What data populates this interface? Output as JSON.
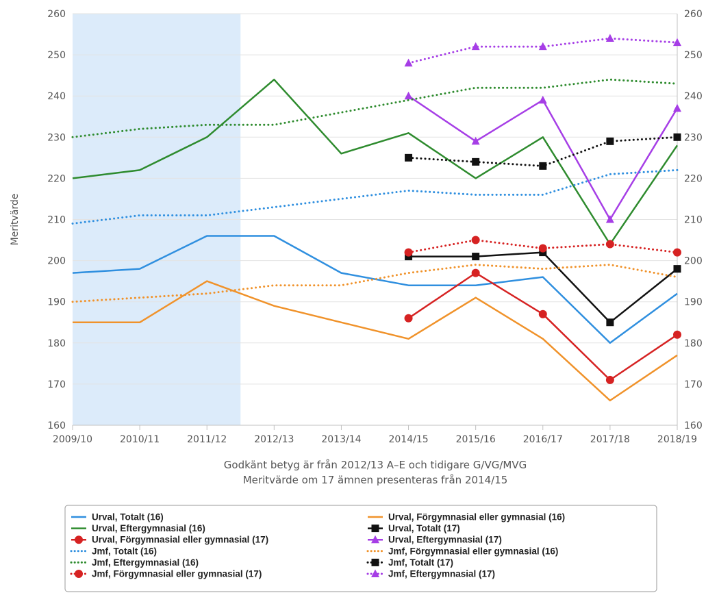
{
  "chart_data": {
    "type": "line",
    "ylabel": "Meritvärde",
    "ylim": [
      160,
      260
    ],
    "yticks": [
      160,
      170,
      180,
      190,
      200,
      210,
      220,
      230,
      240,
      250,
      260
    ],
    "secondary_yaxis": true,
    "grid": "horizontal",
    "legend_position": "bottom",
    "x": [
      "2009/10",
      "2010/11",
      "2011/12",
      "2012/13",
      "2013/14",
      "2014/15",
      "2015/16",
      "2016/17",
      "2017/18",
      "2018/19"
    ],
    "notes": [
      "Godkänt betyg är från 2012/13 A–E och tidigare G/VG/MVG",
      "Meritvärde om 17 ämnen presenteras från 2014/15"
    ],
    "shaded_band": {
      "from": "2009/10",
      "to": "2011/12",
      "color": "#dcebfa"
    },
    "series": [
      {
        "name": "Urval, Totalt (16)",
        "color": "#2f8fdf",
        "dash": "solid",
        "marker": "none",
        "values": [
          197,
          198,
          206,
          206,
          197,
          194,
          194,
          196,
          180,
          192
        ]
      },
      {
        "name": "Urval, Förgymnasial eller gymnasial (16)",
        "color": "#f0922a",
        "dash": "solid",
        "marker": "none",
        "values": [
          185,
          185,
          195,
          189,
          185,
          181,
          191,
          181,
          166,
          177
        ]
      },
      {
        "name": "Urval, Eftergymnasial (16)",
        "color": "#2e8b2e",
        "dash": "solid",
        "marker": "none",
        "values": [
          220,
          222,
          230,
          244,
          226,
          231,
          220,
          230,
          204,
          228
        ]
      },
      {
        "name": "Urval, Totalt (17)",
        "color": "#111111",
        "dash": "solid",
        "marker": "square",
        "values": [
          null,
          null,
          null,
          null,
          null,
          201,
          201,
          202,
          185,
          198
        ]
      },
      {
        "name": "Urval, Förgymnasial eller gymnasial (17)",
        "color": "#d62222",
        "dash": "solid",
        "marker": "circle",
        "values": [
          null,
          null,
          null,
          null,
          null,
          186,
          197,
          187,
          171,
          182
        ]
      },
      {
        "name": "Urval, Eftergymnasial (17)",
        "color": "#a63ee6",
        "dash": "solid",
        "marker": "triangle",
        "values": [
          null,
          null,
          null,
          null,
          null,
          240,
          229,
          239,
          210,
          237
        ]
      },
      {
        "name": "Jmf, Totalt (16)",
        "color": "#2f8fdf",
        "dash": "dot",
        "marker": "none",
        "values": [
          209,
          211,
          211,
          213,
          215,
          217,
          216,
          216,
          221,
          222
        ]
      },
      {
        "name": "Jmf, Förgymnasial eller gymnasial (16)",
        "color": "#f0922a",
        "dash": "dot",
        "marker": "none",
        "values": [
          190,
          191,
          192,
          194,
          194,
          197,
          199,
          198,
          199,
          196
        ]
      },
      {
        "name": "Jmf, Eftergymnasial (16)",
        "color": "#2e8b2e",
        "dash": "dot",
        "marker": "none",
        "values": [
          230,
          232,
          233,
          233,
          236,
          239,
          242,
          242,
          244,
          243
        ]
      },
      {
        "name": "Jmf, Totalt (17)",
        "color": "#111111",
        "dash": "dot",
        "marker": "square",
        "values": [
          null,
          null,
          null,
          null,
          null,
          225,
          224,
          223,
          229,
          230
        ]
      },
      {
        "name": "Jmf, Förgymnasial eller gymnasial (17)",
        "color": "#d62222",
        "dash": "dot",
        "marker": "circle",
        "values": [
          null,
          null,
          null,
          null,
          null,
          202,
          205,
          203,
          204,
          202
        ]
      },
      {
        "name": "Jmf, Eftergymnasial (17)",
        "color": "#a63ee6",
        "dash": "dot",
        "marker": "triangle",
        "values": [
          null,
          null,
          null,
          null,
          null,
          248,
          252,
          252,
          254,
          253
        ]
      }
    ]
  }
}
